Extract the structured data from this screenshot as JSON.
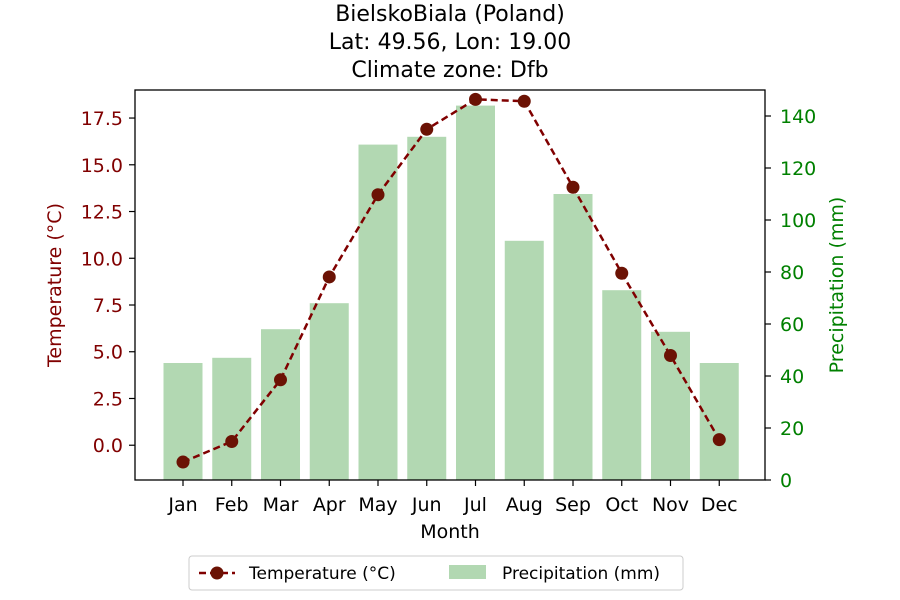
{
  "chart_data": {
    "type": "bar+line",
    "title_lines": [
      "BielskoBiala (Poland)",
      "Lat: 49.56, Lon: 19.00",
      "Climate zone: Dfb"
    ],
    "xlabel": "Month",
    "categories": [
      "Jan",
      "Feb",
      "Mar",
      "Apr",
      "May",
      "Jun",
      "Jul",
      "Aug",
      "Sep",
      "Oct",
      "Nov",
      "Dec"
    ],
    "temperature": {
      "name": "Temperature (°C)",
      "axis_label": "Temperature (°C)",
      "values": [
        -0.9,
        0.2,
        3.5,
        9.0,
        13.4,
        16.9,
        18.5,
        18.4,
        13.8,
        9.2,
        4.8,
        0.3
      ],
      "ylim": [
        -1.86,
        19.0
      ],
      "ticks": [
        "0.0",
        "2.5",
        "5.0",
        "7.5",
        "10.0",
        "12.5",
        "15.0",
        "17.5"
      ],
      "color": "#800000",
      "marker_color": "#6b1204"
    },
    "precipitation": {
      "name": "Precipitation (mm)",
      "axis_label": "Precipitation (mm)",
      "values": [
        45,
        47,
        58,
        68,
        129,
        132,
        144,
        92,
        110,
        73,
        57,
        45
      ],
      "ylim": [
        0,
        150
      ],
      "ticks": [
        "0",
        "20",
        "40",
        "60",
        "80",
        "100",
        "120",
        "140"
      ],
      "color": "#b2d8b2",
      "axis_color": "#008000"
    },
    "legend_position": "bottom-center"
  }
}
